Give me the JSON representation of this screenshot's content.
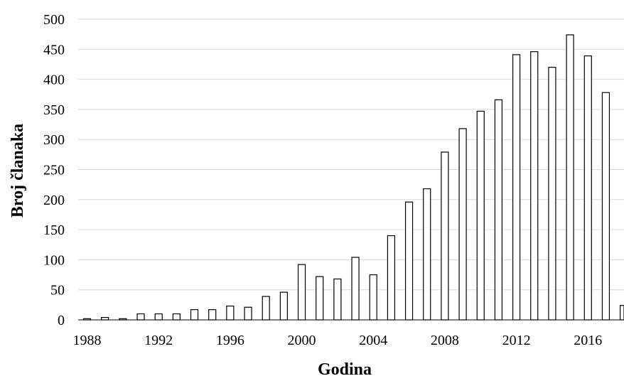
{
  "chart_data": {
    "type": "bar",
    "title": "",
    "xlabel": "Godina",
    "ylabel": "Broj članaka",
    "ylim": [
      0,
      500
    ],
    "yticks": [
      0,
      50,
      100,
      150,
      200,
      250,
      300,
      350,
      400,
      450,
      500
    ],
    "xtick_labels": [
      "1988",
      "1992",
      "1996",
      "2000",
      "2004",
      "2008",
      "2012",
      "2016"
    ],
    "grid": "horizontal",
    "legend": "none",
    "categories": [
      1988,
      1989,
      1990,
      1991,
      1992,
      1993,
      1994,
      1995,
      1996,
      1997,
      1998,
      1999,
      2000,
      2001,
      2002,
      2003,
      2004,
      2005,
      2006,
      2007,
      2008,
      2009,
      2010,
      2011,
      2012,
      2013,
      2014,
      2015,
      2016,
      2017,
      2018
    ],
    "values": [
      2,
      4,
      2,
      10,
      10,
      10,
      17,
      17,
      23,
      21,
      39,
      46,
      92,
      72,
      68,
      104,
      75,
      140,
      196,
      218,
      279,
      318,
      347,
      366,
      441,
      446,
      420,
      474,
      439,
      378,
      24
    ]
  }
}
